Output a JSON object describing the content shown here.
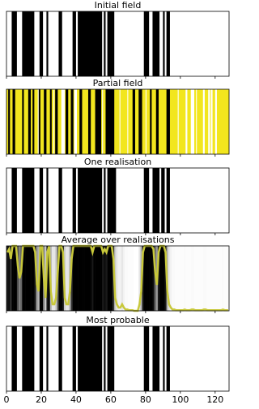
{
  "chart_data": [
    {
      "type": "strip",
      "title": "Initial field",
      "xlim": [
        0,
        128
      ],
      "background": "#ffffff",
      "color": "#000000",
      "black_segments": [
        [
          3,
          6
        ],
        [
          9,
          16
        ],
        [
          19,
          21
        ],
        [
          23,
          24
        ],
        [
          30,
          32
        ],
        [
          38,
          40
        ],
        [
          41,
          55
        ],
        [
          56,
          57
        ],
        [
          58,
          62
        ],
        [
          79,
          82
        ],
        [
          84,
          88
        ],
        [
          90,
          91
        ],
        [
          92,
          94
        ]
      ]
    },
    {
      "type": "partial",
      "title": "Partial field",
      "xlim": [
        0,
        128
      ],
      "background": "#f2e61e",
      "color": "#000000",
      "black_segments": [
        [
          1,
          2
        ],
        [
          3.5,
          5
        ],
        [
          9,
          10
        ],
        [
          12.5,
          14
        ],
        [
          15,
          16
        ],
        [
          18.5,
          19.5
        ],
        [
          21.5,
          23
        ],
        [
          25,
          26
        ],
        [
          28,
          29.5
        ],
        [
          34,
          35.5
        ],
        [
          37,
          38.5
        ],
        [
          42,
          43.5
        ],
        [
          47,
          48.5
        ],
        [
          51,
          54.5
        ],
        [
          57,
          62
        ],
        [
          72.5,
          74
        ],
        [
          76,
          78
        ],
        [
          82.5,
          83.5
        ],
        [
          86,
          87.5
        ],
        [
          92,
          94
        ]
      ],
      "white_segments": [
        [
          18,
          18.5
        ],
        [
          27,
          27.5
        ],
        [
          31.5,
          33.5
        ],
        [
          39,
          40.5
        ],
        [
          55,
          55.5
        ],
        [
          65,
          65.5
        ],
        [
          69.5,
          70
        ],
        [
          80,
          80.5
        ],
        [
          98.5,
          99
        ],
        [
          103,
          104
        ],
        [
          106,
          108
        ],
        [
          109,
          109.5
        ],
        [
          113,
          114
        ],
        [
          116,
          117
        ],
        [
          117.5,
          118.5
        ],
        [
          120,
          121
        ]
      ]
    },
    {
      "type": "strip",
      "title": "One realisation",
      "xlim": [
        0,
        128
      ],
      "background": "#ffffff",
      "color": "#000000",
      "black_segments": [
        [
          3,
          6
        ],
        [
          9,
          16
        ],
        [
          19,
          21
        ],
        [
          23,
          24
        ],
        [
          30,
          32
        ],
        [
          38,
          40
        ],
        [
          41,
          55
        ],
        [
          56,
          57
        ],
        [
          58,
          63
        ],
        [
          79,
          82
        ],
        [
          84,
          88
        ],
        [
          89,
          91
        ],
        [
          92,
          94
        ]
      ]
    },
    {
      "type": "average",
      "title": "Average over realisations",
      "xlim": [
        0,
        128
      ],
      "ylim": [
        0,
        1
      ],
      "color": "#c8c83a",
      "values": [
        0.9,
        0.95,
        0.8,
        1,
        1,
        1,
        0.7,
        0.5,
        0.6,
        1,
        1,
        1,
        1,
        1,
        1,
        1,
        0.9,
        0.4,
        0.3,
        1,
        1,
        0.5,
        0.2,
        0.9,
        1,
        0.3,
        0.1,
        0.1,
        0.2,
        0.6,
        1,
        1,
        0.9,
        0.2,
        0.1,
        0.1,
        0.3,
        0.8,
        1,
        1,
        1,
        1,
        1,
        1,
        1,
        1,
        1,
        1,
        1,
        0.9,
        1,
        1,
        1,
        1,
        1,
        0.9,
        0.95,
        0.9,
        1,
        1,
        1,
        0.8,
        0.2,
        0.1,
        0.05,
        0.05,
        0.1,
        0.05,
        0.02,
        0.02,
        0.01,
        0.01,
        0.01,
        0,
        0,
        0,
        0.1,
        0.3,
        0.9,
        1,
        1,
        1,
        1,
        1,
        0.95,
        0.6,
        0.4,
        0.9,
        1,
        1,
        1,
        0.9,
        0.3,
        0.1,
        0.05,
        0.02,
        0.02,
        0.01,
        0.01,
        0.01,
        0.01,
        0.01,
        0.02,
        0.01,
        0.01,
        0.01,
        0.02,
        0.02,
        0.01,
        0.01,
        0.01,
        0.01,
        0.01,
        0.02,
        0.02,
        0.01,
        0.01,
        0.01,
        0.01,
        0.01,
        0.01,
        0.01,
        0.01,
        0.01,
        0.02,
        0.01,
        0.01,
        0.01
      ]
    },
    {
      "type": "strip",
      "title": "Most probable",
      "xlim": [
        0,
        128
      ],
      "background": "#ffffff",
      "color": "#000000",
      "black_segments": [
        [
          3,
          6
        ],
        [
          9,
          16
        ],
        [
          19,
          21
        ],
        [
          23,
          24
        ],
        [
          30,
          32
        ],
        [
          38,
          40
        ],
        [
          41,
          55
        ],
        [
          56,
          57
        ],
        [
          58,
          62
        ],
        [
          79,
          82
        ],
        [
          84,
          88
        ],
        [
          90,
          91
        ],
        [
          92,
          94
        ]
      ],
      "xticks": [
        0,
        20,
        40,
        60,
        80,
        100,
        120
      ]
    }
  ]
}
